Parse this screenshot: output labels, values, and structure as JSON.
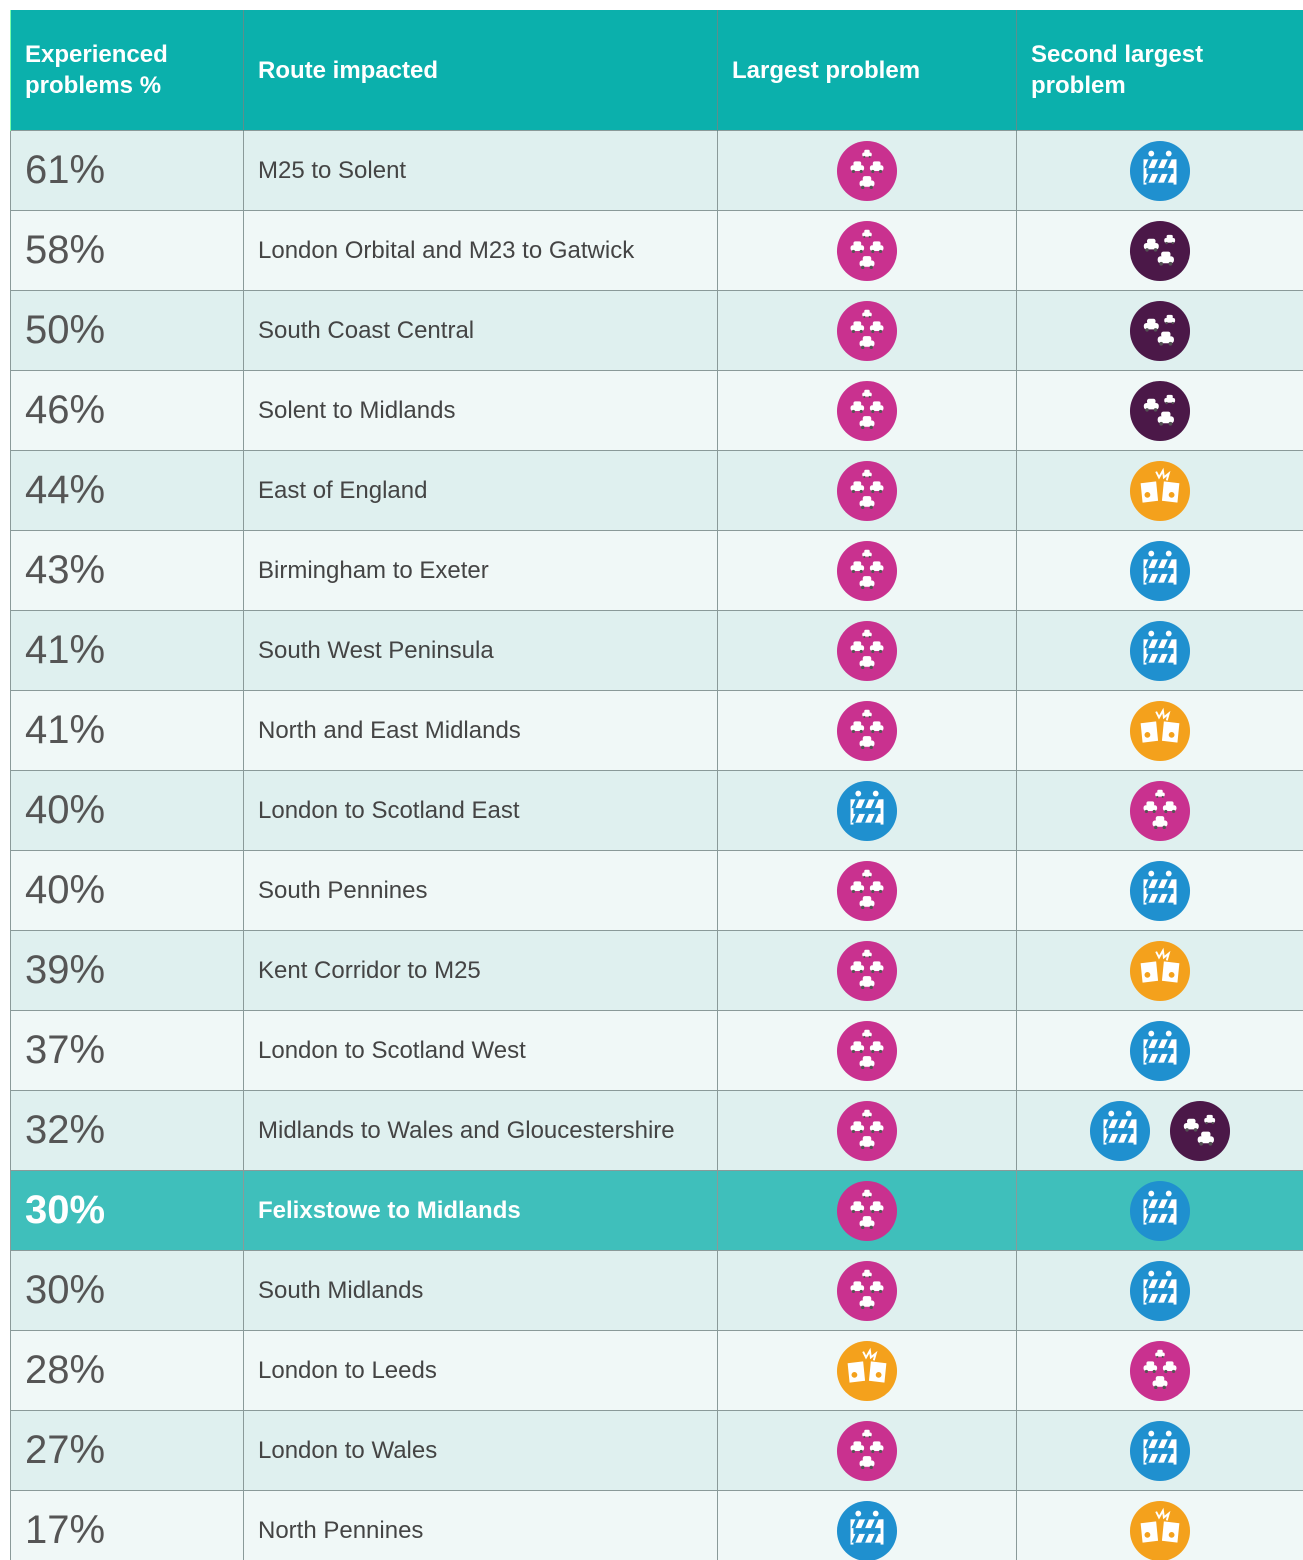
{
  "header": {
    "columns": [
      "Experienced problems %",
      "Route impacted",
      "Largest problem",
      "Second largest problem"
    ]
  },
  "rows": [
    {
      "percent": "61%",
      "route": "M25 to Solent"
    },
    {
      "percent": "58%",
      "route": "London Orbital and M23 to Gatwick"
    },
    {
      "percent": "50%",
      "route": "South Coast Central"
    },
    {
      "percent": "46%",
      "route": "Solent to Midlands"
    },
    {
      "percent": "44%",
      "route": "East of England"
    },
    {
      "percent": "43%",
      "route": "Birmingham to Exeter"
    },
    {
      "percent": "41%",
      "route": "South West Peninsula"
    },
    {
      "percent": "41%",
      "route": "North and East Midlands"
    },
    {
      "percent": "40%",
      "route": "London to Scotland East"
    },
    {
      "percent": "40%",
      "route": "South Pennines"
    },
    {
      "percent": "39%",
      "route": "Kent Corridor to M25"
    },
    {
      "percent": "37%",
      "route": "London to Scotland West"
    },
    {
      "percent": "32%",
      "route": "Midlands to Wales and Gloucestershire"
    },
    {
      "percent": "30%",
      "route": "Felixstowe to Midlands"
    },
    {
      "percent": "30%",
      "route": "South Midlands"
    },
    {
      "percent": "28%",
      "route": "London to Leeds"
    },
    {
      "percent": "27%",
      "route": "London to Wales"
    },
    {
      "percent": "17%",
      "route": "North Pennines"
    }
  ]
}
